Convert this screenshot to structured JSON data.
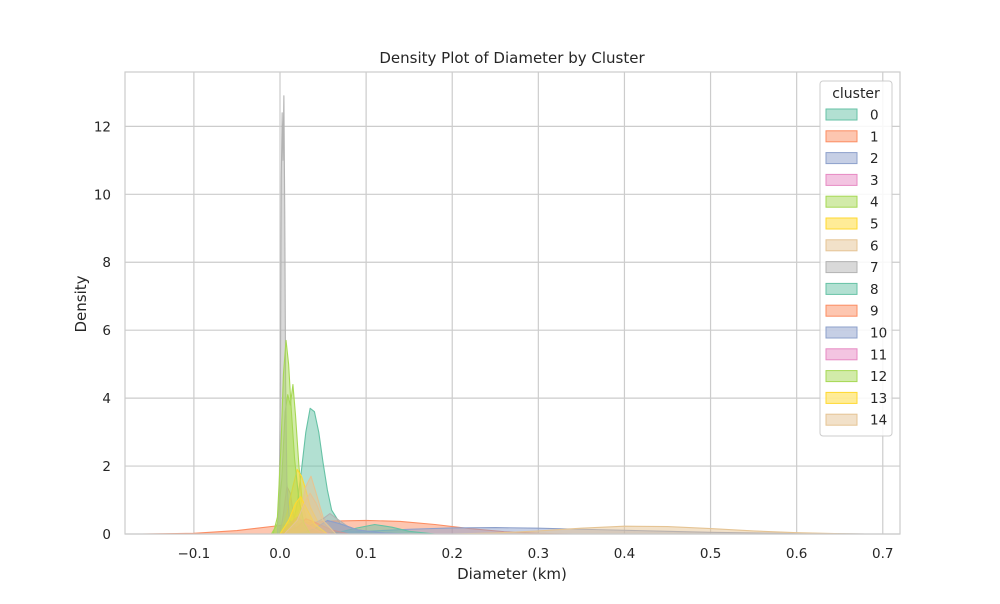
{
  "chart_data": {
    "type": "area",
    "title": "Density Plot of Diameter by Cluster",
    "xlabel": "Diameter (km)",
    "ylabel": "Density",
    "xlim": [
      -0.18,
      0.72
    ],
    "ylim": [
      0,
      13.6
    ],
    "xticks": [
      -0.1,
      0.0,
      0.1,
      0.2,
      0.3,
      0.4,
      0.5,
      0.6,
      0.7
    ],
    "xtick_labels": [
      "−0.1",
      "0.0",
      "0.1",
      "0.2",
      "0.3",
      "0.4",
      "0.5",
      "0.6",
      "0.7"
    ],
    "yticks": [
      0,
      2,
      4,
      6,
      8,
      10,
      12
    ],
    "ytick_labels": [
      "0",
      "2",
      "4",
      "6",
      "8",
      "10",
      "12"
    ],
    "grid": true,
    "legend": {
      "title": "cluster",
      "placement": "top-right"
    },
    "series": [
      {
        "name": "0",
        "color": "#66c2a5",
        "points": [
          [
            0.0,
            0
          ],
          [
            0.008,
            0.05
          ],
          [
            0.015,
            0.3
          ],
          [
            0.02,
            0.9
          ],
          [
            0.025,
            1.9
          ],
          [
            0.03,
            3.0
          ],
          [
            0.035,
            3.7
          ],
          [
            0.04,
            3.6
          ],
          [
            0.045,
            3.0
          ],
          [
            0.05,
            2.1
          ],
          [
            0.055,
            1.3
          ],
          [
            0.06,
            0.7
          ],
          [
            0.07,
            0.3
          ],
          [
            0.09,
            0.12
          ],
          [
            0.11,
            0.05
          ],
          [
            0.14,
            0
          ]
        ]
      },
      {
        "name": "1",
        "color": "#fc8d62",
        "points": [
          [
            -0.16,
            0
          ],
          [
            -0.1,
            0.02
          ],
          [
            -0.05,
            0.1
          ],
          [
            0.0,
            0.25
          ],
          [
            0.03,
            0.33
          ],
          [
            0.06,
            0.38
          ],
          [
            0.1,
            0.4
          ],
          [
            0.14,
            0.37
          ],
          [
            0.18,
            0.28
          ],
          [
            0.22,
            0.16
          ],
          [
            0.26,
            0.07
          ],
          [
            0.3,
            0.02
          ],
          [
            0.34,
            0
          ]
        ]
      },
      {
        "name": "2",
        "color": "#8da0cb",
        "points": [
          [
            0.0,
            0
          ],
          [
            0.05,
            0.03
          ],
          [
            0.1,
            0.08
          ],
          [
            0.15,
            0.14
          ],
          [
            0.2,
            0.18
          ],
          [
            0.25,
            0.19
          ],
          [
            0.3,
            0.17
          ],
          [
            0.35,
            0.14
          ],
          [
            0.4,
            0.11
          ],
          [
            0.45,
            0.08
          ],
          [
            0.5,
            0.05
          ],
          [
            0.55,
            0.03
          ],
          [
            0.6,
            0.015
          ],
          [
            0.65,
            0.005
          ],
          [
            0.68,
            0
          ]
        ]
      },
      {
        "name": "3",
        "color": "#e78ac3",
        "points": [
          [
            0.0,
            0
          ],
          [
            0.004,
            0.6
          ],
          [
            0.008,
            1.4
          ],
          [
            0.012,
            1.2
          ],
          [
            0.016,
            0.5
          ],
          [
            0.022,
            0.1
          ],
          [
            0.03,
            0
          ]
        ]
      },
      {
        "name": "4",
        "color": "#a6d854",
        "points": [
          [
            -0.01,
            0
          ],
          [
            -0.003,
            0.3
          ],
          [
            0.002,
            1.6
          ],
          [
            0.006,
            3.6
          ],
          [
            0.009,
            4.1
          ],
          [
            0.012,
            3.8
          ],
          [
            0.015,
            4.4
          ],
          [
            0.018,
            3.5
          ],
          [
            0.022,
            2.0
          ],
          [
            0.026,
            0.9
          ],
          [
            0.032,
            0.3
          ],
          [
            0.04,
            0
          ]
        ]
      },
      {
        "name": "5",
        "color": "#ffd92f",
        "points": [
          [
            0.0,
            0
          ],
          [
            0.008,
            0.6
          ],
          [
            0.015,
            1.4
          ],
          [
            0.02,
            1.9
          ],
          [
            0.025,
            1.7
          ],
          [
            0.03,
            1.3
          ],
          [
            0.035,
            0.8
          ],
          [
            0.045,
            0.3
          ],
          [
            0.06,
            0
          ]
        ]
      },
      {
        "name": "6",
        "color": "#e5c494",
        "points": [
          [
            0.01,
            0
          ],
          [
            0.025,
            0.8
          ],
          [
            0.03,
            1.4
          ],
          [
            0.036,
            1.7
          ],
          [
            0.042,
            1.2
          ],
          [
            0.05,
            0.5
          ],
          [
            0.06,
            0.15
          ],
          [
            0.07,
            0
          ],
          [
            0.2,
            0
          ],
          [
            0.25,
            0.03
          ],
          [
            0.3,
            0.09
          ],
          [
            0.35,
            0.17
          ],
          [
            0.4,
            0.23
          ],
          [
            0.45,
            0.22
          ],
          [
            0.5,
            0.16
          ],
          [
            0.55,
            0.09
          ],
          [
            0.6,
            0.04
          ],
          [
            0.65,
            0.01
          ],
          [
            0.68,
            0
          ]
        ]
      },
      {
        "name": "7",
        "color": "#b3b3b3",
        "points": [
          [
            -0.003,
            0
          ],
          [
            -0.001,
            1.0
          ],
          [
            0.0005,
            4.5
          ],
          [
            0.0015,
            10.5
          ],
          [
            0.0025,
            12.4
          ],
          [
            0.0035,
            11.0
          ],
          [
            0.0045,
            12.9
          ],
          [
            0.0055,
            9.5
          ],
          [
            0.0065,
            4.5
          ],
          [
            0.008,
            1.5
          ],
          [
            0.011,
            0.4
          ],
          [
            0.02,
            0.15
          ],
          [
            0.035,
            0.25
          ],
          [
            0.05,
            0.45
          ],
          [
            0.058,
            0.6
          ],
          [
            0.066,
            0.45
          ],
          [
            0.08,
            0.2
          ],
          [
            0.1,
            0.05
          ],
          [
            0.12,
            0
          ]
        ]
      },
      {
        "name": "8",
        "color": "#66c2a5",
        "points": [
          [
            0.04,
            0
          ],
          [
            0.07,
            0.06
          ],
          [
            0.09,
            0.18
          ],
          [
            0.11,
            0.28
          ],
          [
            0.13,
            0.2
          ],
          [
            0.15,
            0.08
          ],
          [
            0.18,
            0
          ]
        ]
      },
      {
        "name": "9",
        "color": "#fc8d62",
        "points": [
          [
            0.0,
            0
          ],
          [
            0.02,
            0.2
          ],
          [
            0.03,
            0.45
          ],
          [
            0.04,
            0.35
          ],
          [
            0.06,
            0.12
          ],
          [
            0.08,
            0
          ]
        ]
      },
      {
        "name": "10",
        "color": "#8da0cb",
        "points": [
          [
            0.02,
            0
          ],
          [
            0.04,
            0.15
          ],
          [
            0.055,
            0.4
          ],
          [
            0.07,
            0.3
          ],
          [
            0.09,
            0.12
          ],
          [
            0.12,
            0.03
          ],
          [
            0.15,
            0
          ]
        ]
      },
      {
        "name": "11",
        "color": "#e78ac3",
        "points": [
          [
            0.0,
            0
          ],
          [
            0.01,
            0.25
          ],
          [
            0.02,
            0.5
          ],
          [
            0.03,
            0.3
          ],
          [
            0.045,
            0.08
          ],
          [
            0.06,
            0
          ]
        ]
      },
      {
        "name": "12",
        "color": "#a6d854",
        "points": [
          [
            -0.008,
            0
          ],
          [
            -0.003,
            0.5
          ],
          [
            0.001,
            2.5
          ],
          [
            0.004,
            4.7
          ],
          [
            0.007,
            5.7
          ],
          [
            0.01,
            5.0
          ],
          [
            0.013,
            3.7
          ],
          [
            0.017,
            2.2
          ],
          [
            0.022,
            1.0
          ],
          [
            0.028,
            0.3
          ],
          [
            0.035,
            0
          ]
        ]
      },
      {
        "name": "13",
        "color": "#ffd92f",
        "points": [
          [
            0.0,
            0
          ],
          [
            0.01,
            0.4
          ],
          [
            0.018,
            0.9
          ],
          [
            0.024,
            1.1
          ],
          [
            0.03,
            0.8
          ],
          [
            0.04,
            0.3
          ],
          [
            0.055,
            0
          ]
        ]
      },
      {
        "name": "14",
        "color": "#e5c494",
        "points": [
          [
            0.005,
            0
          ],
          [
            0.02,
            0.4
          ],
          [
            0.03,
            1.0
          ],
          [
            0.035,
            1.2
          ],
          [
            0.042,
            0.9
          ],
          [
            0.05,
            0.4
          ],
          [
            0.065,
            0
          ]
        ]
      }
    ]
  }
}
